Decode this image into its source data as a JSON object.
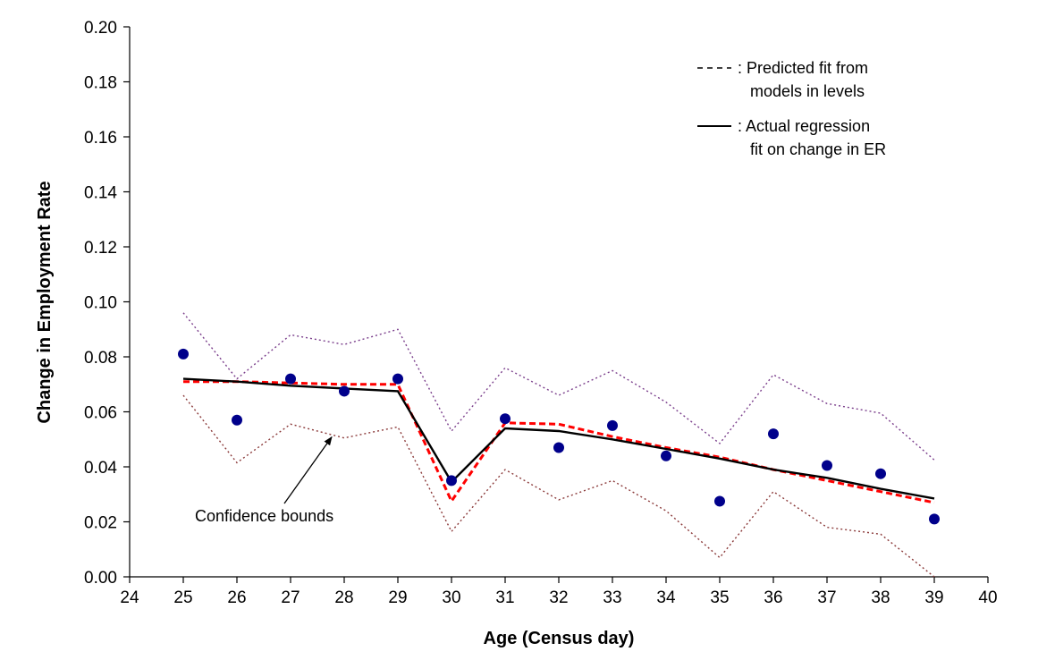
{
  "chart_data": {
    "type": "line",
    "title": "",
    "xlabel": "Age (Census day)",
    "ylabel": "Change in Employment Rate",
    "xlim": [
      24,
      40
    ],
    "ylim": [
      0,
      0.2
    ],
    "x_ticks": [
      "24",
      "25",
      "26",
      "27",
      "28",
      "29",
      "30",
      "31",
      "32",
      "33",
      "34",
      "35",
      "36",
      "37",
      "38",
      "39",
      "40"
    ],
    "y_ticks": [
      "0.00",
      "0.02",
      "0.04",
      "0.06",
      "0.08",
      "0.10",
      "0.12",
      "0.14",
      "0.16",
      "0.18",
      "0.20"
    ],
    "x": [
      25,
      26,
      27,
      28,
      29,
      30,
      31,
      32,
      33,
      34,
      35,
      36,
      37,
      38,
      39
    ],
    "series": [
      {
        "role": "observed",
        "style": "markers",
        "color": "#00008b",
        "values": [
          0.081,
          0.057,
          0.072,
          0.0675,
          0.072,
          0.035,
          0.0575,
          0.047,
          0.055,
          0.044,
          0.0275,
          0.052,
          0.0405,
          0.0375,
          0.021
        ]
      },
      {
        "role": "actual-fit",
        "style": "solid",
        "color": "#000000",
        "values": [
          0.072,
          0.071,
          0.0695,
          0.0685,
          0.0675,
          0.0345,
          0.054,
          0.053,
          0.05,
          0.0465,
          0.043,
          0.039,
          0.036,
          0.032,
          0.0285
        ]
      },
      {
        "role": "predicted-fit",
        "style": "dashed",
        "color": "#ff0000",
        "values": [
          0.071,
          0.071,
          0.0705,
          0.07,
          0.07,
          0.0275,
          0.056,
          0.0555,
          0.051,
          0.047,
          0.0435,
          0.039,
          0.035,
          0.031,
          0.027
        ]
      },
      {
        "role": "upper-confidence-bound",
        "style": "dotted",
        "color": "#7b3f8c",
        "values": [
          0.096,
          0.072,
          0.088,
          0.0845,
          0.09,
          0.053,
          0.076,
          0.066,
          0.075,
          0.0635,
          0.0485,
          0.0735,
          0.063,
          0.0595,
          0.0425
        ]
      },
      {
        "role": "lower-confidence-bound",
        "style": "dotted",
        "color": "#8b3a3a",
        "values": [
          0.066,
          0.0415,
          0.0555,
          0.0505,
          0.0545,
          0.0165,
          0.039,
          0.028,
          0.035,
          0.024,
          0.007,
          0.031,
          0.018,
          0.0155,
          0.0
        ]
      }
    ],
    "legend": {
      "placement": "top-right",
      "entries": [
        {
          "style": "dashed",
          "line1": ": Predicted fit from",
          "line2": "models in levels"
        },
        {
          "style": "solid",
          "line1": ": Actual regression",
          "line2": "fit on change in ER"
        }
      ]
    },
    "annotation": {
      "text": "Confidence bounds",
      "points_to": {
        "x": 28,
        "y": 0.0515
      }
    },
    "grid": false
  }
}
